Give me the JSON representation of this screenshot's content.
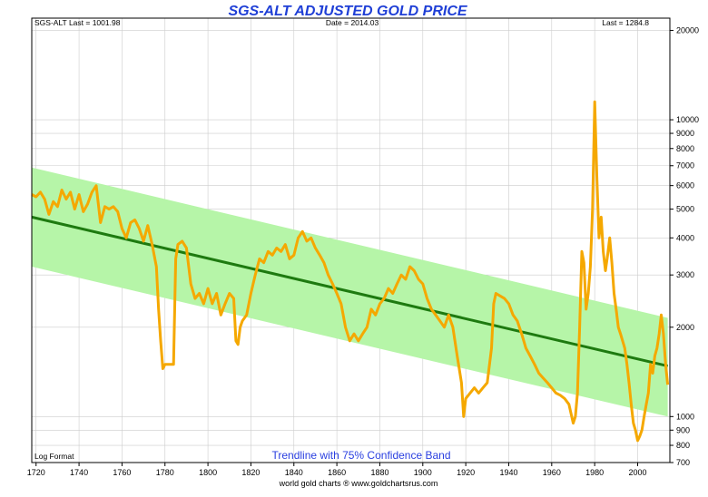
{
  "chart_data": {
    "type": "line",
    "title": "SGS-ALT ADJUSTED  GOLD PRICE",
    "header": {
      "left": "SGS-ALT Last = 1001.98",
      "center": "Date = 2014.03",
      "right": "Last = 1284.8"
    },
    "scale_note": "Log Format",
    "band_label": "Trendline with 75% Confidence Band",
    "source": "world gold charts ® www.goldchartsrus.com",
    "x_range": [
      1718,
      2015
    ],
    "y_range": [
      700,
      22000
    ],
    "y_scale": "log",
    "x_ticks": [
      1720,
      1740,
      1760,
      1780,
      1800,
      1820,
      1840,
      1860,
      1880,
      1900,
      1920,
      1940,
      1960,
      1980,
      2000
    ],
    "y_ticks": [
      700,
      800,
      900,
      1000,
      2000,
      3000,
      4000,
      5000,
      6000,
      7000,
      8000,
      9000,
      10000,
      20000
    ],
    "y_tick_labels": [
      "700",
      "800",
      "900",
      "1000",
      "2000",
      "3000",
      "4000",
      "5000",
      "6000",
      "7000",
      "8000",
      "9000",
      "10000",
      "20000"
    ],
    "grid": true,
    "trendline": {
      "color": "#1e7a10",
      "points": [
        [
          1718,
          4700
        ],
        [
          2014,
          1480
        ]
      ]
    },
    "confidence_band": {
      "color": "#b6f5a8",
      "upper": [
        [
          1718,
          6900
        ],
        [
          2014,
          2150
        ]
      ],
      "lower": [
        [
          1718,
          3200
        ],
        [
          2014,
          1000
        ]
      ]
    },
    "series": [
      {
        "color": "#f5a800",
        "points": [
          [
            1718,
            5600
          ],
          [
            1720,
            5500
          ],
          [
            1722,
            5700
          ],
          [
            1724,
            5400
          ],
          [
            1726,
            4800
          ],
          [
            1728,
            5300
          ],
          [
            1730,
            5100
          ],
          [
            1732,
            5800
          ],
          [
            1734,
            5400
          ],
          [
            1736,
            5700
          ],
          [
            1738,
            5000
          ],
          [
            1740,
            5600
          ],
          [
            1742,
            4900
          ],
          [
            1744,
            5200
          ],
          [
            1746,
            5700
          ],
          [
            1748,
            6000
          ],
          [
            1750,
            4500
          ],
          [
            1752,
            5100
          ],
          [
            1754,
            5000
          ],
          [
            1756,
            5100
          ],
          [
            1758,
            4900
          ],
          [
            1760,
            4300
          ],
          [
            1762,
            4000
          ],
          [
            1764,
            4500
          ],
          [
            1766,
            4600
          ],
          [
            1768,
            4300
          ],
          [
            1770,
            3900
          ],
          [
            1772,
            4400
          ],
          [
            1774,
            3800
          ],
          [
            1776,
            3200
          ],
          [
            1777,
            2300
          ],
          [
            1778,
            1800
          ],
          [
            1779,
            1450
          ],
          [
            1780,
            1500
          ],
          [
            1782,
            1500
          ],
          [
            1784,
            1500
          ],
          [
            1785,
            3400
          ],
          [
            1786,
            3800
          ],
          [
            1788,
            3900
          ],
          [
            1790,
            3700
          ],
          [
            1792,
            2800
          ],
          [
            1794,
            2500
          ],
          [
            1796,
            2600
          ],
          [
            1798,
            2400
          ],
          [
            1800,
            2700
          ],
          [
            1802,
            2400
          ],
          [
            1804,
            2600
          ],
          [
            1806,
            2200
          ],
          [
            1808,
            2400
          ],
          [
            1810,
            2600
          ],
          [
            1812,
            2500
          ],
          [
            1813,
            1800
          ],
          [
            1814,
            1750
          ],
          [
            1815,
            2000
          ],
          [
            1816,
            2100
          ],
          [
            1818,
            2200
          ],
          [
            1820,
            2600
          ],
          [
            1822,
            3000
          ],
          [
            1824,
            3400
          ],
          [
            1826,
            3300
          ],
          [
            1828,
            3600
          ],
          [
            1830,
            3500
          ],
          [
            1832,
            3700
          ],
          [
            1834,
            3600
          ],
          [
            1836,
            3800
          ],
          [
            1838,
            3400
          ],
          [
            1840,
            3500
          ],
          [
            1842,
            4000
          ],
          [
            1844,
            4200
          ],
          [
            1846,
            3900
          ],
          [
            1848,
            4000
          ],
          [
            1850,
            3700
          ],
          [
            1852,
            3500
          ],
          [
            1854,
            3300
          ],
          [
            1856,
            3000
          ],
          [
            1858,
            2800
          ],
          [
            1860,
            2600
          ],
          [
            1862,
            2400
          ],
          [
            1864,
            2000
          ],
          [
            1866,
            1800
          ],
          [
            1868,
            1900
          ],
          [
            1870,
            1800
          ],
          [
            1872,
            1900
          ],
          [
            1874,
            2000
          ],
          [
            1876,
            2300
          ],
          [
            1878,
            2200
          ],
          [
            1880,
            2400
          ],
          [
            1882,
            2500
          ],
          [
            1884,
            2700
          ],
          [
            1886,
            2600
          ],
          [
            1888,
            2800
          ],
          [
            1890,
            3000
          ],
          [
            1892,
            2900
          ],
          [
            1894,
            3200
          ],
          [
            1896,
            3100
          ],
          [
            1898,
            2900
          ],
          [
            1900,
            2800
          ],
          [
            1902,
            2500
          ],
          [
            1904,
            2300
          ],
          [
            1906,
            2200
          ],
          [
            1908,
            2100
          ],
          [
            1910,
            2000
          ],
          [
            1912,
            2200
          ],
          [
            1914,
            2000
          ],
          [
            1916,
            1600
          ],
          [
            1918,
            1300
          ],
          [
            1919,
            1000
          ],
          [
            1920,
            1150
          ],
          [
            1922,
            1200
          ],
          [
            1924,
            1250
          ],
          [
            1926,
            1200
          ],
          [
            1928,
            1250
          ],
          [
            1930,
            1300
          ],
          [
            1932,
            1700
          ],
          [
            1933,
            2400
          ],
          [
            1934,
            2600
          ],
          [
            1936,
            2550
          ],
          [
            1938,
            2500
          ],
          [
            1940,
            2400
          ],
          [
            1942,
            2200
          ],
          [
            1944,
            2100
          ],
          [
            1946,
            1900
          ],
          [
            1948,
            1700
          ],
          [
            1950,
            1600
          ],
          [
            1952,
            1500
          ],
          [
            1954,
            1400
          ],
          [
            1956,
            1350
          ],
          [
            1958,
            1300
          ],
          [
            1960,
            1250
          ],
          [
            1962,
            1200
          ],
          [
            1964,
            1180
          ],
          [
            1966,
            1150
          ],
          [
            1968,
            1100
          ],
          [
            1970,
            950
          ],
          [
            1971,
            1000
          ],
          [
            1972,
            1200
          ],
          [
            1973,
            2000
          ],
          [
            1974,
            3600
          ],
          [
            1975,
            3300
          ],
          [
            1976,
            2300
          ],
          [
            1977,
            2600
          ],
          [
            1978,
            3200
          ],
          [
            1979,
            5000
          ],
          [
            1980,
            11500
          ],
          [
            1981,
            6500
          ],
          [
            1982,
            4000
          ],
          [
            1983,
            4700
          ],
          [
            1984,
            3600
          ],
          [
            1985,
            3100
          ],
          [
            1986,
            3500
          ],
          [
            1987,
            4000
          ],
          [
            1988,
            3300
          ],
          [
            1989,
            2600
          ],
          [
            1990,
            2300
          ],
          [
            1991,
            2000
          ],
          [
            1992,
            1900
          ],
          [
            1993,
            1800
          ],
          [
            1994,
            1700
          ],
          [
            1995,
            1500
          ],
          [
            1996,
            1300
          ],
          [
            1997,
            1100
          ],
          [
            1998,
            950
          ],
          [
            1999,
            900
          ],
          [
            2000,
            830
          ],
          [
            2001,
            860
          ],
          [
            2002,
            900
          ],
          [
            2003,
            1000
          ],
          [
            2004,
            1100
          ],
          [
            2005,
            1200
          ],
          [
            2006,
            1500
          ],
          [
            2007,
            1400
          ],
          [
            2008,
            1600
          ],
          [
            2009,
            1700
          ],
          [
            2010,
            1900
          ],
          [
            2011,
            2200
          ],
          [
            2012,
            1900
          ],
          [
            2013,
            1500
          ],
          [
            2014,
            1280
          ]
        ]
      }
    ]
  }
}
